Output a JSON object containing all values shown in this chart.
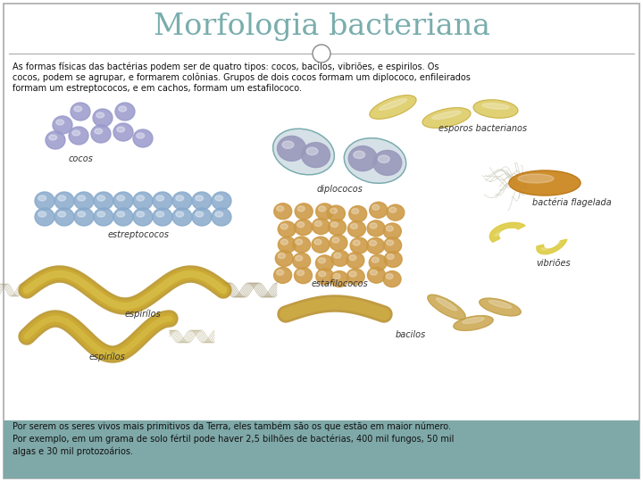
{
  "title": "Morfologia bacteriana",
  "title_color": "#7aadad",
  "title_fontsize": 24,
  "title_font": "serif",
  "bg_color": "#ffffff",
  "border_color": "#aaaaaa",
  "footer_text_line1": "Por serem os seres vivos mais primitivos da Terra, eles também são os que estão em maior número.",
  "footer_text_line2": "Por exemplo, em um grama de solo fértil pode haver 2,5 bilhões de bactérias, 400 mil fungos, 50 mil",
  "footer_text_line3": "algas e 30 mil protozoários.",
  "footer_bg": "#7fa8a8",
  "intro_line1": "As formas físicas das bactérias podem ser de quatro tipos: cocos, bacilos, vibriões, e espirilos. Os",
  "intro_line2": "cocos, podem se agrupar, e formarem colônias. Grupos de dois cocos formam um diplococo, enfileirados",
  "intro_line3": "formam um estreptococos, e em cachos, formam um estafilococo.",
  "coco_color": "#9999cc",
  "strep_color": "#88aacc",
  "sporo_color": "#ddcc66",
  "diplo_bg_color": "#88aabb",
  "diplo_cell_color": "#9999bb",
  "estafi_color": "#cc9944",
  "bacilo_color": "#ccaa55",
  "vibriao_color": "#ddcc44",
  "espirilo_color": "#ccaa33",
  "flagelada_color": "#cc8822"
}
